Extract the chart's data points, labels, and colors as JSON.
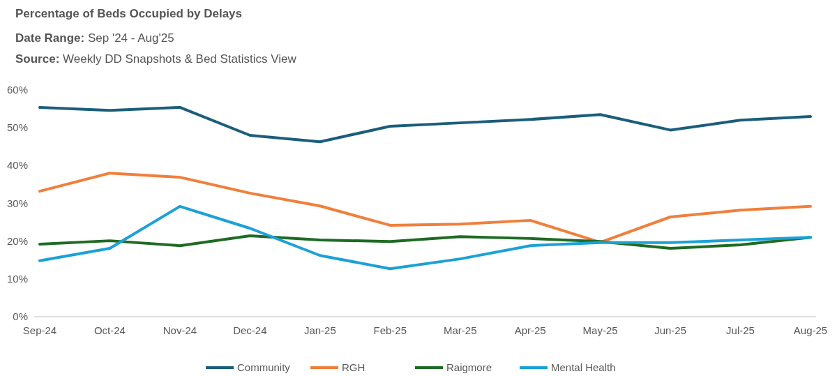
{
  "chart_data": {
    "type": "line",
    "title": "Percentage of Beds Occupied by Delays",
    "subtitle": "Date Range: Sep '24 - Aug'25",
    "annotations": [
      "Source: Weekly DD Snapshots & Bed Statistics View"
    ],
    "categories": [
      "Sep-24",
      "Oct-24",
      "Nov-24",
      "Dec-24",
      "Jan-25",
      "Feb-25",
      "Mar-25",
      "Apr-25",
      "May-25",
      "Jun-25",
      "Jul-25",
      "Aug-25"
    ],
    "series": [
      {
        "name": "Community",
        "color": "#1b5e7b",
        "values": [
          55.4,
          54.6,
          55.4,
          48.0,
          46.3,
          50.4,
          51.3,
          52.2,
          53.5,
          49.4,
          52.0,
          53.0
        ]
      },
      {
        "name": "RGH",
        "color": "#f07f3c",
        "values": [
          33.2,
          38.0,
          36.9,
          32.7,
          29.3,
          24.2,
          24.5,
          25.5,
          19.7,
          26.4,
          28.2,
          29.2
        ]
      },
      {
        "name": "Raigmore",
        "color": "#1e6b24",
        "values": [
          19.2,
          20.1,
          18.8,
          21.4,
          20.3,
          19.9,
          21.2,
          20.7,
          19.9,
          18.1,
          19.0,
          21.0
        ]
      },
      {
        "name": "Mental Health",
        "color": "#1ba1d6",
        "values": [
          14.8,
          18.1,
          29.2,
          23.4,
          16.2,
          12.7,
          15.3,
          18.8,
          19.6,
          19.6,
          20.3,
          21.0
        ]
      }
    ],
    "ylim": [
      0,
      60
    ],
    "yticks": [
      {
        "value": 0,
        "label": "0%"
      },
      {
        "value": 10,
        "label": "10%"
      },
      {
        "value": 20,
        "label": "20%"
      },
      {
        "value": 30,
        "label": "30%"
      },
      {
        "value": 40,
        "label": "40%"
      },
      {
        "value": 50,
        "label": "50%"
      },
      {
        "value": 60,
        "label": "60%"
      }
    ],
    "grid": false,
    "legend": "bottom",
    "marker": "none",
    "line_style": "solid"
  }
}
